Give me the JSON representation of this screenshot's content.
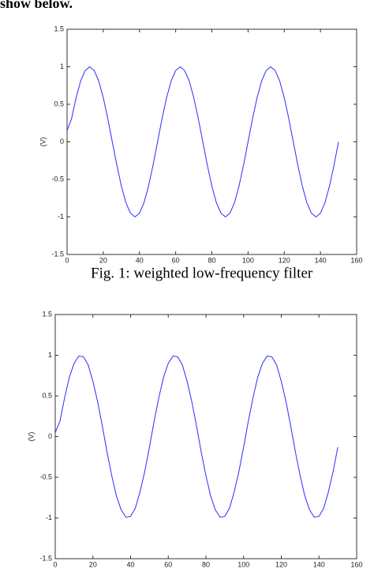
{
  "header": {
    "text": "show below."
  },
  "caption": "Fig. 1: weighted low-frequency filter",
  "chart_data": [
    {
      "type": "line",
      "ylabel": "(V)",
      "x": [
        0,
        2.5,
        5,
        7.5,
        10,
        12.5,
        15,
        17.5,
        20,
        22.5,
        25,
        27.5,
        30,
        32.5,
        35,
        37.5,
        40,
        42.5,
        45,
        47.5,
        50,
        52.5,
        55,
        57.5,
        60,
        62.5,
        65,
        67.5,
        70,
        72.5,
        75,
        77.5,
        80,
        82.5,
        85,
        87.5,
        90,
        92.5,
        95,
        97.5,
        100,
        102.5,
        105,
        107.5,
        110,
        112.5,
        115,
        117.5,
        120,
        122.5,
        125,
        127.5,
        130,
        132.5,
        135,
        137.5,
        140,
        142.5,
        145,
        147.5,
        150
      ],
      "series": [
        {
          "color": "#2b2bff",
          "values": [
            0.15,
            0.31,
            0.59,
            0.81,
            0.95,
            1,
            0.95,
            0.81,
            0.59,
            0.31,
            0,
            -0.31,
            -0.59,
            -0.81,
            -0.95,
            -1,
            -0.95,
            -0.81,
            -0.59,
            -0.31,
            0,
            0.31,
            0.59,
            0.81,
            0.95,
            1,
            0.95,
            0.81,
            0.59,
            0.31,
            0,
            -0.31,
            -0.59,
            -0.81,
            -0.95,
            -1,
            -0.95,
            -0.81,
            -0.59,
            -0.31,
            0,
            0.31,
            0.59,
            0.81,
            0.95,
            1,
            0.95,
            0.81,
            0.59,
            0.31,
            0,
            -0.31,
            -0.59,
            -0.81,
            -0.95,
            -1,
            -0.95,
            -0.81,
            -0.59,
            -0.31,
            0
          ]
        }
      ],
      "xlim": [
        0,
        160
      ],
      "ylim": [
        -1.5,
        1.5
      ],
      "xticks": [
        0,
        20,
        40,
        60,
        80,
        100,
        120,
        140,
        160
      ],
      "yticks": [
        -1.5,
        -1,
        -0.5,
        0,
        0.5,
        1,
        1.5
      ]
    },
    {
      "type": "line",
      "ylabel": "(V)",
      "x": [
        0,
        2.5,
        5,
        7.5,
        10,
        12.5,
        15,
        17.5,
        20,
        22.5,
        25,
        27.5,
        30,
        32.5,
        35,
        37.5,
        40,
        42.5,
        45,
        47.5,
        50,
        52.5,
        55,
        57.5,
        60,
        62.5,
        65,
        67.5,
        70,
        72.5,
        75,
        77.5,
        80,
        82.5,
        85,
        87.5,
        90,
        92.5,
        95,
        97.5,
        100,
        102.5,
        105,
        107.5,
        110,
        112.5,
        115,
        117.5,
        120,
        122.5,
        125,
        127.5,
        130,
        132.5,
        135,
        137.5,
        140,
        142.5,
        145,
        147.5,
        150
      ],
      "series": [
        {
          "color": "#2b2bff",
          "values": [
            0.05,
            0.19,
            0.48,
            0.73,
            0.9,
            0.99,
            0.98,
            0.88,
            0.68,
            0.43,
            0.13,
            -0.19,
            -0.48,
            -0.73,
            -0.9,
            -0.99,
            -0.98,
            -0.88,
            -0.68,
            -0.43,
            -0.13,
            0.19,
            0.48,
            0.73,
            0.9,
            0.99,
            0.98,
            0.88,
            0.68,
            0.43,
            0.13,
            -0.19,
            -0.48,
            -0.73,
            -0.9,
            -0.99,
            -0.98,
            -0.88,
            -0.68,
            -0.43,
            -0.13,
            0.19,
            0.48,
            0.73,
            0.9,
            0.99,
            0.98,
            0.88,
            0.68,
            0.43,
            0.13,
            -0.19,
            -0.48,
            -0.73,
            -0.9,
            -0.99,
            -0.98,
            -0.88,
            -0.68,
            -0.43,
            -0.13
          ]
        }
      ],
      "xlim": [
        0,
        160
      ],
      "ylim": [
        -1.5,
        1.5
      ],
      "xticks": [
        0,
        20,
        40,
        60,
        80,
        100,
        120,
        140,
        160
      ],
      "yticks": [
        -1.5,
        -1,
        -0.5,
        0,
        0.5,
        1,
        1.5
      ]
    }
  ]
}
